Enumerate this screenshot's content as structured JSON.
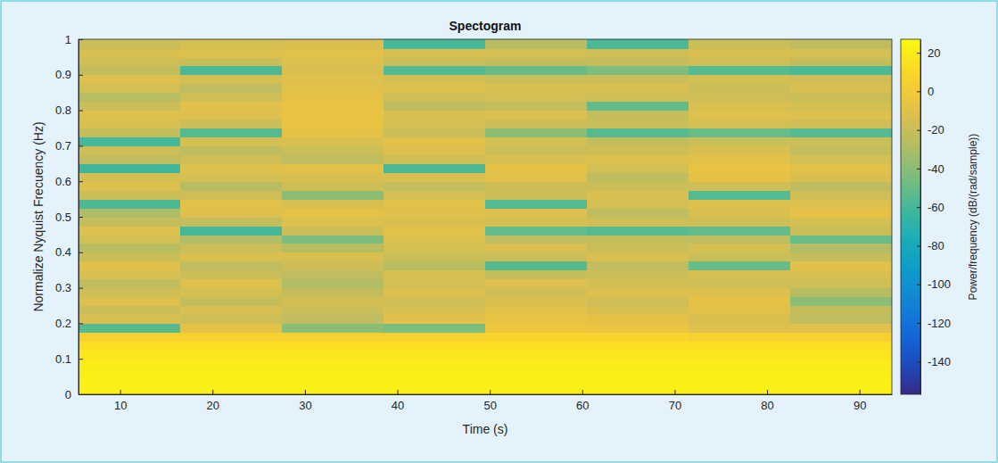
{
  "chart_data": {
    "type": "heatmap",
    "title": "Spectogram",
    "x_label": "Time (s)",
    "y_label": "Normalize Nyquist Frecuency (Hz)",
    "xlim": [
      5.5,
      93.5
    ],
    "xticks": [
      10,
      20,
      30,
      40,
      50,
      60,
      70,
      80,
      90
    ],
    "ylim": [
      0,
      1
    ],
    "yticks": [
      0,
      0.1,
      0.2,
      0.3,
      0.4,
      0.5,
      0.6,
      0.7,
      0.8,
      0.9,
      1
    ],
    "x_edges": [
      5.5,
      16.5,
      27.5,
      38.5,
      49.5,
      60.5,
      71.5,
      82.5,
      93.5
    ],
    "y_edges": [
      0,
      0.025,
      0.05,
      0.075,
      0.1,
      0.125,
      0.15,
      0.175,
      0.2,
      0.225,
      0.25,
      0.275,
      0.3,
      0.325,
      0.35,
      0.375,
      0.4,
      0.425,
      0.45,
      0.475,
      0.5,
      0.525,
      0.55,
      0.575,
      0.6,
      0.625,
      0.65,
      0.675,
      0.7,
      0.725,
      0.75,
      0.775,
      0.8,
      0.825,
      0.85,
      0.875,
      0.9,
      0.925,
      0.95,
      0.975,
      1
    ],
    "values": [
      [
        22,
        22,
        21,
        20,
        18,
        14,
        6,
        -55,
        -14,
        -20,
        -12,
        -18,
        -24,
        -14,
        -10,
        -20,
        -26,
        -16,
        -12,
        -22,
        -30,
        -58,
        -20,
        -12,
        -16,
        -62,
        -24,
        -18,
        -60,
        -22,
        -14,
        -12,
        -20,
        -26,
        -16,
        -12,
        -22,
        -18,
        -14,
        -20
      ],
      [
        22,
        22,
        21,
        20,
        18,
        14,
        6,
        -8,
        -18,
        -14,
        -22,
        -16,
        -12,
        -20,
        -24,
        -14,
        -20,
        -28,
        -60,
        -22,
        -12,
        -10,
        -18,
        -26,
        -16,
        -12,
        -18,
        -24,
        -16,
        -55,
        -20,
        -12,
        -10,
        -18,
        -24,
        -16,
        -58,
        -20,
        -12,
        -16
      ],
      [
        22,
        22,
        21,
        20,
        18,
        14,
        6,
        -40,
        -24,
        -20,
        -16,
        -22,
        -28,
        -24,
        -18,
        -14,
        -26,
        -45,
        -20,
        -12,
        -8,
        -14,
        -40,
        -18,
        -14,
        -10,
        -24,
        -20,
        -14,
        -8,
        -6,
        -6,
        -6,
        -8,
        -10,
        -12,
        -14,
        -12,
        -10,
        -14
      ],
      [
        22,
        22,
        21,
        20,
        18,
        14,
        6,
        -45,
        -10,
        -14,
        -18,
        -12,
        -16,
        -14,
        -26,
        -20,
        -16,
        -12,
        -10,
        -14,
        -12,
        -10,
        -16,
        -22,
        -14,
        -58,
        -18,
        -12,
        -10,
        -20,
        -16,
        -14,
        -24,
        -18,
        -12,
        -16,
        -56,
        -20,
        -14,
        -60
      ],
      [
        22,
        22,
        21,
        20,
        18,
        14,
        8,
        -2,
        -6,
        -10,
        -14,
        -18,
        -12,
        -22,
        -55,
        -20,
        -14,
        -24,
        -52,
        -16,
        -12,
        -56,
        -20,
        -18,
        -10,
        -8,
        -14,
        -20,
        -16,
        -40,
        -20,
        -12,
        -22,
        -16,
        -14,
        -20,
        -50,
        -22,
        -16,
        -26
      ],
      [
        22,
        22,
        21,
        20,
        18,
        14,
        8,
        -4,
        -8,
        -14,
        -18,
        -12,
        -16,
        -20,
        -24,
        -14,
        -20,
        -22,
        -55,
        -18,
        -24,
        -16,
        -14,
        -20,
        -24,
        -16,
        -12,
        -18,
        -22,
        -55,
        -20,
        -22,
        -52,
        -18,
        -14,
        -20,
        -44,
        -22,
        -18,
        -58
      ],
      [
        22,
        22,
        21,
        20,
        18,
        14,
        6,
        -12,
        -14,
        -10,
        -8,
        -12,
        -18,
        -14,
        -50,
        -20,
        -16,
        -24,
        -52,
        -18,
        -14,
        -12,
        -56,
        -18,
        -8,
        -6,
        -10,
        -14,
        -20,
        -50,
        -16,
        -12,
        -14,
        -18,
        -20,
        -16,
        -55,
        -18,
        -14,
        -20
      ],
      [
        22,
        22,
        21,
        20,
        18,
        14,
        6,
        -10,
        -24,
        -22,
        -40,
        -26,
        -18,
        -14,
        -10,
        -22,
        -28,
        -50,
        -20,
        -16,
        -8,
        -12,
        -18,
        -24,
        -14,
        -10,
        -16,
        -22,
        -20,
        -55,
        -18,
        -12,
        -16,
        -20,
        -14,
        -18,
        -58,
        -22,
        -16,
        -24
      ]
    ],
    "color_label": "Power/frequency (dB/(rad/sample))",
    "color_range": [
      -157,
      27
    ],
    "color_ticks": [
      20,
      0,
      -20,
      -40,
      -60,
      -80,
      -100,
      -120,
      -140
    ]
  }
}
